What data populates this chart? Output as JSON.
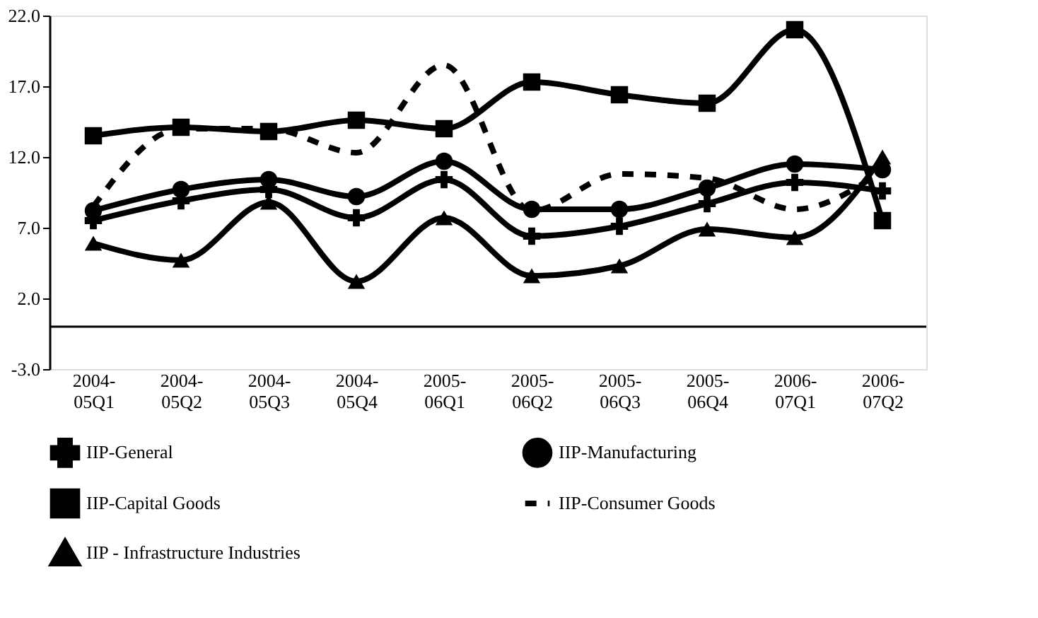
{
  "chart_data": {
    "type": "line",
    "categories": [
      "2004-05Q1",
      "2004-05Q2",
      "2004-05Q3",
      "2004-05Q4",
      "2005-06Q1",
      "2005-06Q2",
      "2005-06Q3",
      "2005-06Q4",
      "2006-07Q1",
      "2006-07Q2"
    ],
    "series": [
      {
        "name": "IIP-General",
        "color": "#000000",
        "marker": "cross",
        "line_style": "solid",
        "values": [
          7.5,
          8.9,
          9.7,
          7.7,
          10.4,
          6.4,
          7.1,
          8.7,
          10.2,
          9.6
        ]
      },
      {
        "name": "IIP-Manufacturing",
        "color": "#000000",
        "marker": "circle",
        "line_style": "solid",
        "values": [
          8.2,
          9.7,
          10.4,
          9.2,
          11.7,
          8.3,
          8.3,
          9.8,
          11.5,
          11.1
        ]
      },
      {
        "name": "IIP-Capital Goods",
        "color": "#000000",
        "marker": "square",
        "line_style": "solid",
        "values": [
          13.5,
          14.1,
          13.8,
          14.6,
          14.0,
          17.3,
          16.4,
          15.8,
          21.0,
          7.5
        ]
      },
      {
        "name": "IIP-Consumer Goods",
        "color": "#000000",
        "marker": "none",
        "line_style": "dashed",
        "values": [
          8.5,
          14.0,
          14.0,
          12.3,
          18.5,
          8.2,
          10.8,
          10.5,
          8.3,
          11.0
        ]
      },
      {
        "name": "IIP - Infrastructure Industries",
        "color": "#000000",
        "marker": "triangle",
        "line_style": "solid",
        "values": [
          5.9,
          4.7,
          8.8,
          3.2,
          7.7,
          3.6,
          4.3,
          6.9,
          6.3,
          12.0
        ]
      }
    ],
    "ylim": [
      -3,
      22
    ],
    "yticks": [
      {
        "value": -3,
        "label": "-3.0"
      },
      {
        "value": 2,
        "label": "2.0"
      },
      {
        "value": 7,
        "label": "7.0"
      },
      {
        "value": 12,
        "label": "12.0"
      },
      {
        "value": 17,
        "label": "17.0"
      },
      {
        "value": 22,
        "label": "22.0"
      }
    ],
    "ref_lines": [
      {
        "axis": "y",
        "value": 0
      }
    ],
    "grid": false,
    "legend": "bottom"
  }
}
